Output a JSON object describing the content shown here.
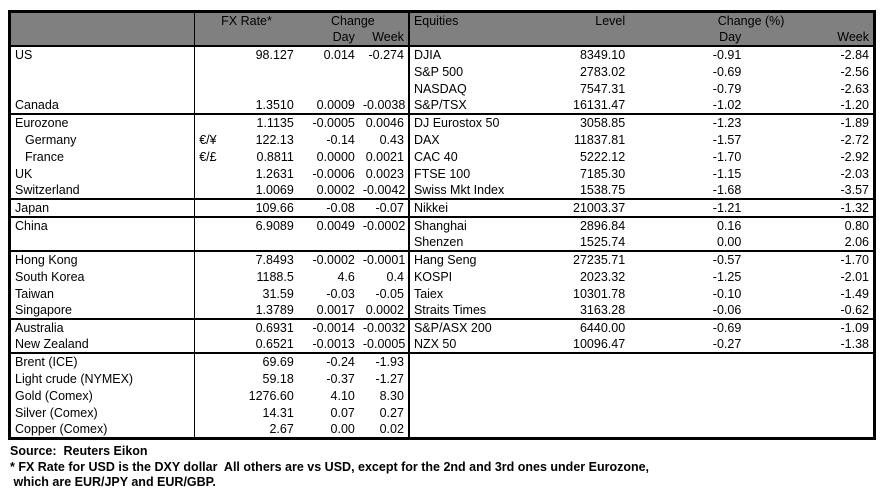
{
  "colors": {
    "header_bg": "#808080",
    "header_text": "#ffffff",
    "border": "#000000",
    "body_bg": "#ffffff"
  },
  "table": {
    "fx_header": {
      "rate": "FX Rate*",
      "change": "Change",
      "day": "Day",
      "week": "Week"
    },
    "eq_header": {
      "title": "Equities",
      "level": "Level",
      "change": "Change (%)",
      "day": "Day",
      "week": "Week"
    },
    "rows": [
      {
        "label": "US",
        "pair": "",
        "rate": "98.127",
        "day": "0.014",
        "week": "-0.274",
        "eqLabel": "DJIA",
        "level": "8349.10",
        "eqDay": "-0.91",
        "eqWeek": "-2.84",
        "groupStart": false,
        "indent": false
      },
      {
        "label": "",
        "pair": "",
        "rate": "",
        "day": "",
        "week": "",
        "eqLabel": "S&P 500",
        "level": "2783.02",
        "eqDay": "-0.69",
        "eqWeek": "-2.56",
        "groupStart": false,
        "indent": false
      },
      {
        "label": "",
        "pair": "",
        "rate": "",
        "day": "",
        "week": "",
        "eqLabel": "NASDAQ",
        "level": "7547.31",
        "eqDay": "-0.79",
        "eqWeek": "-2.63",
        "groupStart": false,
        "indent": false
      },
      {
        "label": "Canada",
        "pair": "",
        "rate": "1.3510",
        "day": "0.0009",
        "week": "-0.0038",
        "eqLabel": "S&P/TSX",
        "level": "16131.47",
        "eqDay": "-1.02",
        "eqWeek": "-1.20",
        "groupStart": false,
        "indent": false
      },
      {
        "label": "Eurozone",
        "pair": "",
        "rate": "1.1135",
        "day": "-0.0005",
        "week": "0.0046",
        "eqLabel": "DJ Eurostox 50",
        "level": "3058.85",
        "eqDay": "-1.23",
        "eqWeek": "-1.89",
        "groupStart": true,
        "indent": false
      },
      {
        "label": "Germany",
        "pair": "€/¥",
        "rate": "122.13",
        "day": "-0.14",
        "week": "0.43",
        "eqLabel": "DAX",
        "level": "11837.81",
        "eqDay": "-1.57",
        "eqWeek": "-2.72",
        "groupStart": false,
        "indent": true
      },
      {
        "label": "France",
        "pair": "€/£",
        "rate": "0.8811",
        "day": "0.0000",
        "week": "0.0021",
        "eqLabel": "CAC 40",
        "level": "5222.12",
        "eqDay": "-1.70",
        "eqWeek": "-2.92",
        "groupStart": false,
        "indent": true
      },
      {
        "label": "UK",
        "pair": "",
        "rate": "1.2631",
        "day": "-0.0006",
        "week": "0.0023",
        "eqLabel": "FTSE 100",
        "level": "7185.30",
        "eqDay": "-1.15",
        "eqWeek": "-2.03",
        "groupStart": false,
        "indent": false
      },
      {
        "label": "Switzerland",
        "pair": "",
        "rate": "1.0069",
        "day": "0.0002",
        "week": "-0.0042",
        "eqLabel": "Swiss Mkt Index",
        "level": "1538.75",
        "eqDay": "-1.68",
        "eqWeek": "-3.57",
        "groupStart": false,
        "indent": false
      },
      {
        "label": "Japan",
        "pair": "",
        "rate": "109.66",
        "day": "-0.08",
        "week": "-0.07",
        "eqLabel": "Nikkei",
        "level": "21003.37",
        "eqDay": "-1.21",
        "eqWeek": "-1.32",
        "groupStart": true,
        "indent": false
      },
      {
        "label": "China",
        "pair": "",
        "rate": "6.9089",
        "day": "0.0049",
        "week": "-0.0002",
        "eqLabel": "Shanghai",
        "level": "2896.84",
        "eqDay": "0.16",
        "eqWeek": "0.80",
        "groupStart": true,
        "indent": false
      },
      {
        "label": "",
        "pair": "",
        "rate": "",
        "day": "",
        "week": "",
        "eqLabel": "Shenzen",
        "level": "1525.74",
        "eqDay": "0.00",
        "eqWeek": "2.06",
        "groupStart": false,
        "indent": false
      },
      {
        "label": "Hong Kong",
        "pair": "",
        "rate": "7.8493",
        "day": "-0.0002",
        "week": "-0.0001",
        "eqLabel": "Hang Seng",
        "level": "27235.71",
        "eqDay": "-0.57",
        "eqWeek": "-1.70",
        "groupStart": true,
        "indent": false
      },
      {
        "label": "South Korea",
        "pair": "",
        "rate": "1188.5",
        "day": "4.6",
        "week": "0.4",
        "eqLabel": "KOSPI",
        "level": "2023.32",
        "eqDay": "-1.25",
        "eqWeek": "-2.01",
        "groupStart": false,
        "indent": false
      },
      {
        "label": "Taiwan",
        "pair": "",
        "rate": "31.59",
        "day": "-0.03",
        "week": "-0.05",
        "eqLabel": "Taiex",
        "level": "10301.78",
        "eqDay": "-0.10",
        "eqWeek": "-1.49",
        "groupStart": false,
        "indent": false
      },
      {
        "label": "Singapore",
        "pair": "",
        "rate": "1.3789",
        "day": "0.0017",
        "week": "0.0002",
        "eqLabel": "Straits Times",
        "level": "3163.28",
        "eqDay": "-0.06",
        "eqWeek": "-0.62",
        "groupStart": false,
        "indent": false
      },
      {
        "label": "Australia",
        "pair": "",
        "rate": "0.6931",
        "day": "-0.0014",
        "week": "-0.0032",
        "eqLabel": "S&P/ASX  200",
        "level": "6440.00",
        "eqDay": "-0.69",
        "eqWeek": "-1.09",
        "groupStart": true,
        "indent": false
      },
      {
        "label": "New Zealand",
        "pair": "",
        "rate": "0.6521",
        "day": "-0.0013",
        "week": "-0.0005",
        "eqLabel": "NZX 50",
        "level": "10096.47",
        "eqDay": "-0.27",
        "eqWeek": "-1.38",
        "groupStart": false,
        "indent": false
      },
      {
        "label": "Brent (ICE)",
        "pair": "",
        "rate": "69.69",
        "day": "-0.24",
        "week": "-1.93",
        "eqLabel": "",
        "level": "",
        "eqDay": "",
        "eqWeek": "",
        "groupStart": true,
        "indent": false
      },
      {
        "label": "Light crude (NYMEX)",
        "pair": "",
        "rate": "59.18",
        "day": "-0.37",
        "week": "-1.27",
        "eqLabel": "",
        "level": "",
        "eqDay": "",
        "eqWeek": "",
        "groupStart": false,
        "indent": false
      },
      {
        "label": "Gold (Comex)",
        "pair": "",
        "rate": "1276.60",
        "day": "4.10",
        "week": "8.30",
        "eqLabel": "",
        "level": "",
        "eqDay": "",
        "eqWeek": "",
        "groupStart": false,
        "indent": false
      },
      {
        "label": "Silver (Comex)",
        "pair": "",
        "rate": "14.31",
        "day": "0.07",
        "week": "0.27",
        "eqLabel": "",
        "level": "",
        "eqDay": "",
        "eqWeek": "",
        "groupStart": false,
        "indent": false
      },
      {
        "label": "Copper (Comex)",
        "pair": "",
        "rate": "2.67",
        "day": "0.00",
        "week": "0.02",
        "eqLabel": "",
        "level": "",
        "eqDay": "",
        "eqWeek": "",
        "groupStart": false,
        "indent": false
      }
    ]
  },
  "footer": {
    "source": "Source:  Reuters Eikon",
    "note1": "* FX Rate for USD is the DXY dollar  All others are vs USD, except for the 2nd and 3rd ones under Eurozone,",
    "note2": " which are EUR/JPY and EUR/GBP."
  }
}
